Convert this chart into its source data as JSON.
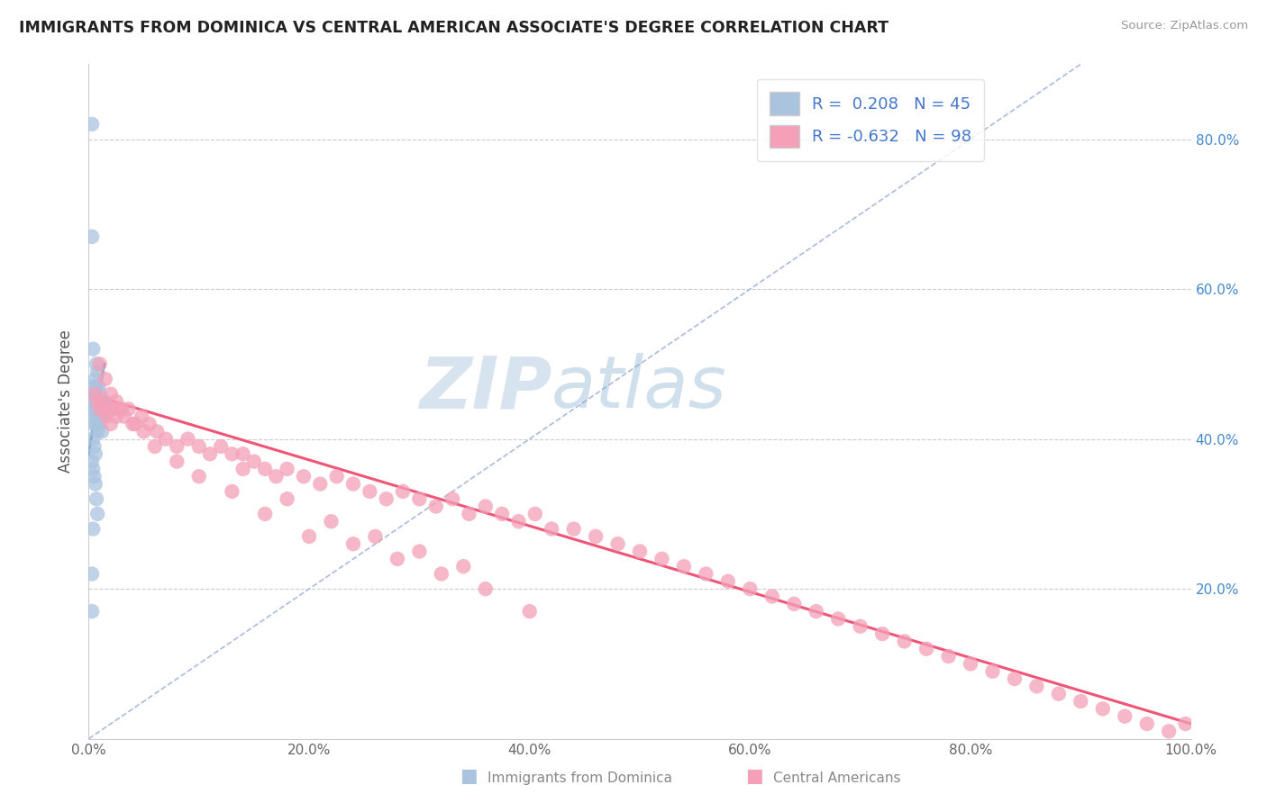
{
  "title": "IMMIGRANTS FROM DOMINICA VS CENTRAL AMERICAN ASSOCIATE'S DEGREE CORRELATION CHART",
  "source": "Source: ZipAtlas.com",
  "ylabel": "Associate's Degree",
  "xlim": [
    0,
    1.0
  ],
  "ylim": [
    0,
    0.9
  ],
  "blue_R": 0.208,
  "blue_N": 45,
  "pink_R": -0.632,
  "pink_N": 98,
  "blue_color": "#aac4e0",
  "pink_color": "#f4a0b8",
  "blue_line_color": "#3366aa",
  "pink_line_color": "#ee5577",
  "diag_color": "#aabbdd",
  "legend_text_color": "#4477cc",
  "background_color": "#ffffff",
  "grid_color": "#cccccc",
  "right_tick_color": "#4488cc",
  "yticks_right": [
    0.2,
    0.4,
    0.6,
    0.8
  ],
  "ytick_right_labels": [
    "20.0%",
    "40.0%",
    "60.0%",
    "80.0%"
  ],
  "xticks": [
    0.0,
    0.2,
    0.4,
    0.6,
    0.8,
    1.0
  ],
  "xtick_labels": [
    "0.0%",
    "20.0%",
    "40.0%",
    "60.0%",
    "80.0%",
    "100.0%"
  ],
  "blue_x": [
    0.004,
    0.005,
    0.006,
    0.007,
    0.008,
    0.009,
    0.01,
    0.011,
    0.012,
    0.013,
    0.005,
    0.006,
    0.007,
    0.008,
    0.009,
    0.01,
    0.011,
    0.012,
    0.013,
    0.014,
    0.004,
    0.005,
    0.006,
    0.007,
    0.008,
    0.009,
    0.01,
    0.006,
    0.007,
    0.008,
    0.004,
    0.005,
    0.006,
    0.003,
    0.004,
    0.005,
    0.006,
    0.007,
    0.008,
    0.004,
    0.003,
    0.003,
    0.004,
    0.003,
    0.003
  ],
  "blue_y": [
    0.44,
    0.45,
    0.46,
    0.47,
    0.45,
    0.44,
    0.43,
    0.44,
    0.45,
    0.43,
    0.42,
    0.44,
    0.45,
    0.43,
    0.44,
    0.42,
    0.43,
    0.41,
    0.44,
    0.45,
    0.47,
    0.46,
    0.48,
    0.5,
    0.49,
    0.47,
    0.46,
    0.43,
    0.42,
    0.41,
    0.4,
    0.39,
    0.38,
    0.37,
    0.36,
    0.35,
    0.34,
    0.32,
    0.3,
    0.28,
    0.82,
    0.67,
    0.52,
    0.22,
    0.17
  ],
  "pink_x": [
    0.006,
    0.008,
    0.01,
    0.012,
    0.014,
    0.016,
    0.018,
    0.02,
    0.022,
    0.025,
    0.028,
    0.032,
    0.036,
    0.042,
    0.048,
    0.055,
    0.062,
    0.07,
    0.08,
    0.09,
    0.1,
    0.11,
    0.12,
    0.13,
    0.14,
    0.15,
    0.16,
    0.17,
    0.18,
    0.195,
    0.21,
    0.225,
    0.24,
    0.255,
    0.27,
    0.285,
    0.3,
    0.315,
    0.33,
    0.345,
    0.36,
    0.375,
    0.39,
    0.405,
    0.42,
    0.44,
    0.46,
    0.48,
    0.5,
    0.52,
    0.54,
    0.56,
    0.58,
    0.6,
    0.62,
    0.64,
    0.66,
    0.68,
    0.7,
    0.72,
    0.74,
    0.76,
    0.78,
    0.8,
    0.82,
    0.84,
    0.86,
    0.88,
    0.9,
    0.92,
    0.94,
    0.96,
    0.98,
    0.995,
    0.01,
    0.015,
    0.02,
    0.025,
    0.03,
    0.04,
    0.05,
    0.06,
    0.08,
    0.1,
    0.13,
    0.16,
    0.2,
    0.24,
    0.28,
    0.32,
    0.36,
    0.4,
    0.14,
    0.18,
    0.22,
    0.26,
    0.3,
    0.34
  ],
  "pink_y": [
    0.46,
    0.45,
    0.44,
    0.45,
    0.44,
    0.43,
    0.44,
    0.42,
    0.44,
    0.43,
    0.44,
    0.43,
    0.44,
    0.42,
    0.43,
    0.42,
    0.41,
    0.4,
    0.39,
    0.4,
    0.39,
    0.38,
    0.39,
    0.38,
    0.36,
    0.37,
    0.36,
    0.35,
    0.36,
    0.35,
    0.34,
    0.35,
    0.34,
    0.33,
    0.32,
    0.33,
    0.32,
    0.31,
    0.32,
    0.3,
    0.31,
    0.3,
    0.29,
    0.3,
    0.28,
    0.28,
    0.27,
    0.26,
    0.25,
    0.24,
    0.23,
    0.22,
    0.21,
    0.2,
    0.19,
    0.18,
    0.17,
    0.16,
    0.15,
    0.14,
    0.13,
    0.12,
    0.11,
    0.1,
    0.09,
    0.08,
    0.07,
    0.06,
    0.05,
    0.04,
    0.03,
    0.02,
    0.01,
    0.02,
    0.5,
    0.48,
    0.46,
    0.45,
    0.44,
    0.42,
    0.41,
    0.39,
    0.37,
    0.35,
    0.33,
    0.3,
    0.27,
    0.26,
    0.24,
    0.22,
    0.2,
    0.17,
    0.38,
    0.32,
    0.29,
    0.27,
    0.25,
    0.23
  ],
  "pink_line_x0": 0.0,
  "pink_line_y0": 0.46,
  "pink_line_x1": 1.0,
  "pink_line_y1": 0.02,
  "blue_line_x0": 0.0,
  "blue_line_y0": 0.38,
  "blue_line_x1": 0.014,
  "blue_line_y1": 0.5
}
